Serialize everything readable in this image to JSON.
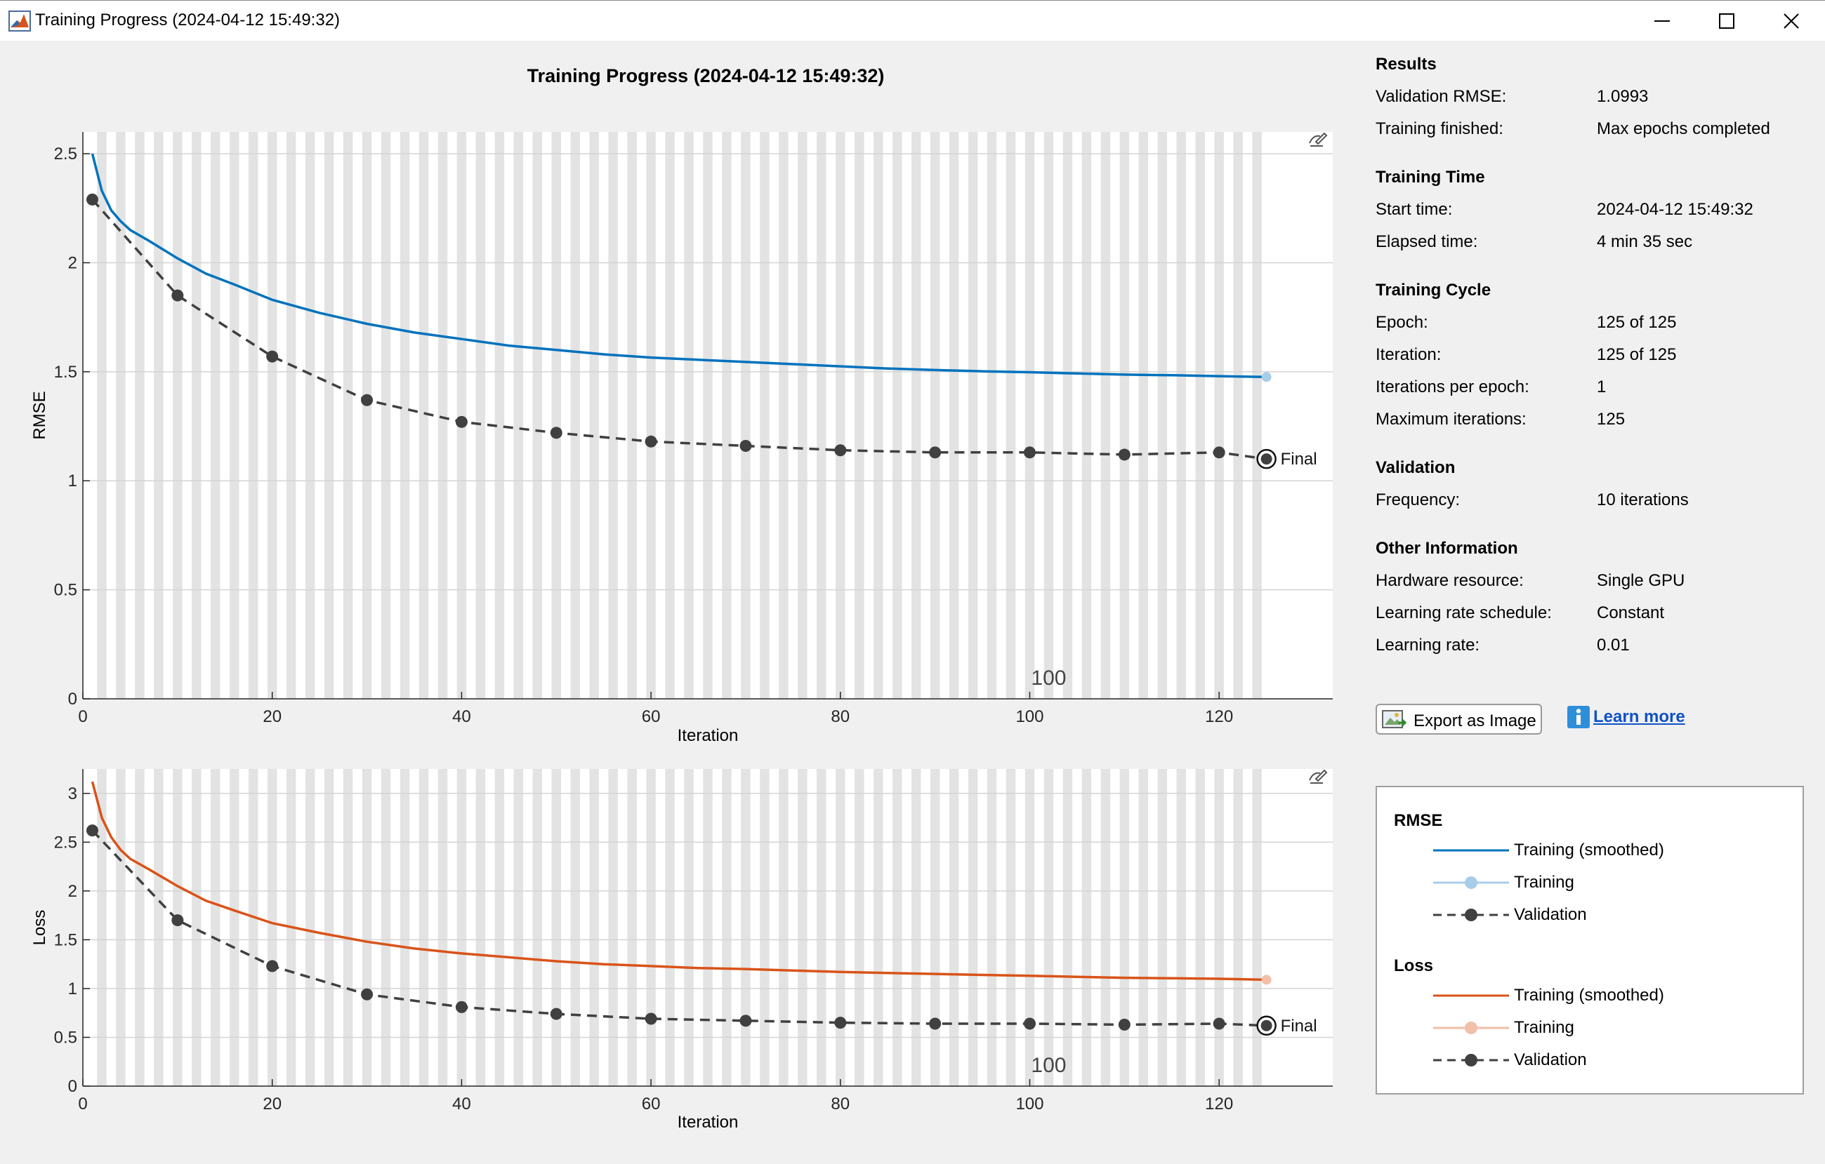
{
  "window": {
    "title": "Training Progress (2024-04-12 15:49:32)",
    "app_icon": "matlab-icon",
    "controls": [
      "minimize-icon",
      "maximize-icon",
      "close-icon"
    ]
  },
  "chart_data": [
    {
      "type": "line",
      "title": "Training Progress (2024-04-12 15:49:32)",
      "xlabel": "Iteration",
      "ylabel": "RMSE",
      "xlim": [
        0,
        132
      ],
      "ylim": [
        0,
        2.6
      ],
      "xticks": [
        0,
        20,
        40,
        60,
        80,
        100,
        120
      ],
      "yticks": [
        0,
        0.5,
        1,
        1.5,
        2,
        2.5
      ],
      "epoch_marker_label": "100",
      "final_label": "Final",
      "series": [
        {
          "name": "Training (smoothed)",
          "color": "#0072bd",
          "x": [
            1,
            2,
            3,
            4,
            5,
            7,
            10,
            13,
            16,
            20,
            25,
            30,
            35,
            40,
            45,
            50,
            55,
            60,
            65,
            70,
            75,
            80,
            85,
            90,
            95,
            100,
            105,
            110,
            115,
            120,
            125
          ],
          "values": [
            2.5,
            2.33,
            2.24,
            2.19,
            2.15,
            2.1,
            2.02,
            1.95,
            1.9,
            1.83,
            1.77,
            1.72,
            1.68,
            1.65,
            1.62,
            1.6,
            1.58,
            1.565,
            1.555,
            1.545,
            1.535,
            1.525,
            1.515,
            1.508,
            1.502,
            1.498,
            1.492,
            1.487,
            1.484,
            1.48,
            1.476
          ]
        },
        {
          "name": "Training",
          "color": "#a8cde8",
          "x": [
            125
          ],
          "values": [
            1.476
          ]
        },
        {
          "name": "Validation",
          "color": "#404040",
          "x": [
            1,
            10,
            20,
            30,
            40,
            50,
            60,
            70,
            80,
            90,
            100,
            110,
            120,
            125
          ],
          "values": [
            2.29,
            1.85,
            1.57,
            1.37,
            1.27,
            1.22,
            1.18,
            1.16,
            1.14,
            1.13,
            1.13,
            1.12,
            1.13,
            1.1
          ]
        }
      ]
    },
    {
      "type": "line",
      "xlabel": "Iteration",
      "ylabel": "Loss",
      "xlim": [
        0,
        132
      ],
      "ylim": [
        0,
        3.25
      ],
      "xticks": [
        0,
        20,
        40,
        60,
        80,
        100,
        120
      ],
      "yticks": [
        0,
        0.5,
        1,
        1.5,
        2,
        2.5,
        3
      ],
      "epoch_marker_label": "100",
      "final_label": "Final",
      "series": [
        {
          "name": "Training (smoothed)",
          "color": "#d95319",
          "x": [
            1,
            2,
            3,
            4,
            5,
            7,
            10,
            13,
            16,
            20,
            25,
            30,
            35,
            40,
            45,
            50,
            55,
            60,
            65,
            70,
            75,
            80,
            85,
            90,
            95,
            100,
            105,
            110,
            115,
            120,
            125
          ],
          "values": [
            3.12,
            2.75,
            2.55,
            2.42,
            2.33,
            2.22,
            2.05,
            1.9,
            1.8,
            1.67,
            1.57,
            1.48,
            1.41,
            1.36,
            1.32,
            1.28,
            1.25,
            1.23,
            1.21,
            1.2,
            1.185,
            1.17,
            1.16,
            1.15,
            1.14,
            1.13,
            1.12,
            1.11,
            1.105,
            1.1,
            1.09
          ]
        },
        {
          "name": "Training",
          "color": "#f2bfa8",
          "x": [
            125
          ],
          "values": [
            1.09
          ]
        },
        {
          "name": "Validation",
          "color": "#404040",
          "x": [
            1,
            10,
            20,
            30,
            40,
            50,
            60,
            70,
            80,
            90,
            100,
            110,
            120,
            125
          ],
          "values": [
            2.62,
            1.7,
            1.23,
            0.94,
            0.81,
            0.74,
            0.69,
            0.67,
            0.65,
            0.64,
            0.64,
            0.63,
            0.64,
            0.62
          ]
        }
      ]
    }
  ],
  "info": {
    "sections": [
      {
        "heading": "Results",
        "rows": [
          {
            "label": "Validation RMSE:",
            "value": "1.0993"
          },
          {
            "label": "Training finished:",
            "value": "Max epochs completed"
          }
        ]
      },
      {
        "heading": "Training Time",
        "rows": [
          {
            "label": "Start time:",
            "value": "2024-04-12 15:49:32"
          },
          {
            "label": "Elapsed time:",
            "value": "4 min 35 sec"
          }
        ]
      },
      {
        "heading": "Training Cycle",
        "rows": [
          {
            "label": "Epoch:",
            "value": "125 of 125"
          },
          {
            "label": "Iteration:",
            "value": "125 of 125"
          },
          {
            "label": "Iterations per epoch:",
            "value": "1"
          },
          {
            "label": "Maximum iterations:",
            "value": "125"
          }
        ]
      },
      {
        "heading": "Validation",
        "rows": [
          {
            "label": "Frequency:",
            "value": "10 iterations"
          }
        ]
      },
      {
        "heading": "Other Information",
        "rows": [
          {
            "label": "Hardware resource:",
            "value": "Single GPU"
          },
          {
            "label": "Learning rate schedule:",
            "value": "Constant"
          },
          {
            "label": "Learning rate:",
            "value": "0.01"
          }
        ]
      }
    ],
    "export_button": "Export as Image",
    "learn_more": "Learn more"
  },
  "legend": {
    "groups": [
      {
        "heading": "RMSE",
        "items": [
          {
            "label": "Training (smoothed)",
            "style": "solid",
            "color": "#0072bd"
          },
          {
            "label": "Training",
            "style": "marker",
            "color": "#a8cde8"
          },
          {
            "label": "Validation",
            "style": "dashed-marker",
            "color": "#404040"
          }
        ]
      },
      {
        "heading": "Loss",
        "items": [
          {
            "label": "Training (smoothed)",
            "style": "solid",
            "color": "#d95319"
          },
          {
            "label": "Training",
            "style": "marker",
            "color": "#f2bfa8"
          },
          {
            "label": "Validation",
            "style": "dashed-marker",
            "color": "#404040"
          }
        ]
      }
    ]
  }
}
